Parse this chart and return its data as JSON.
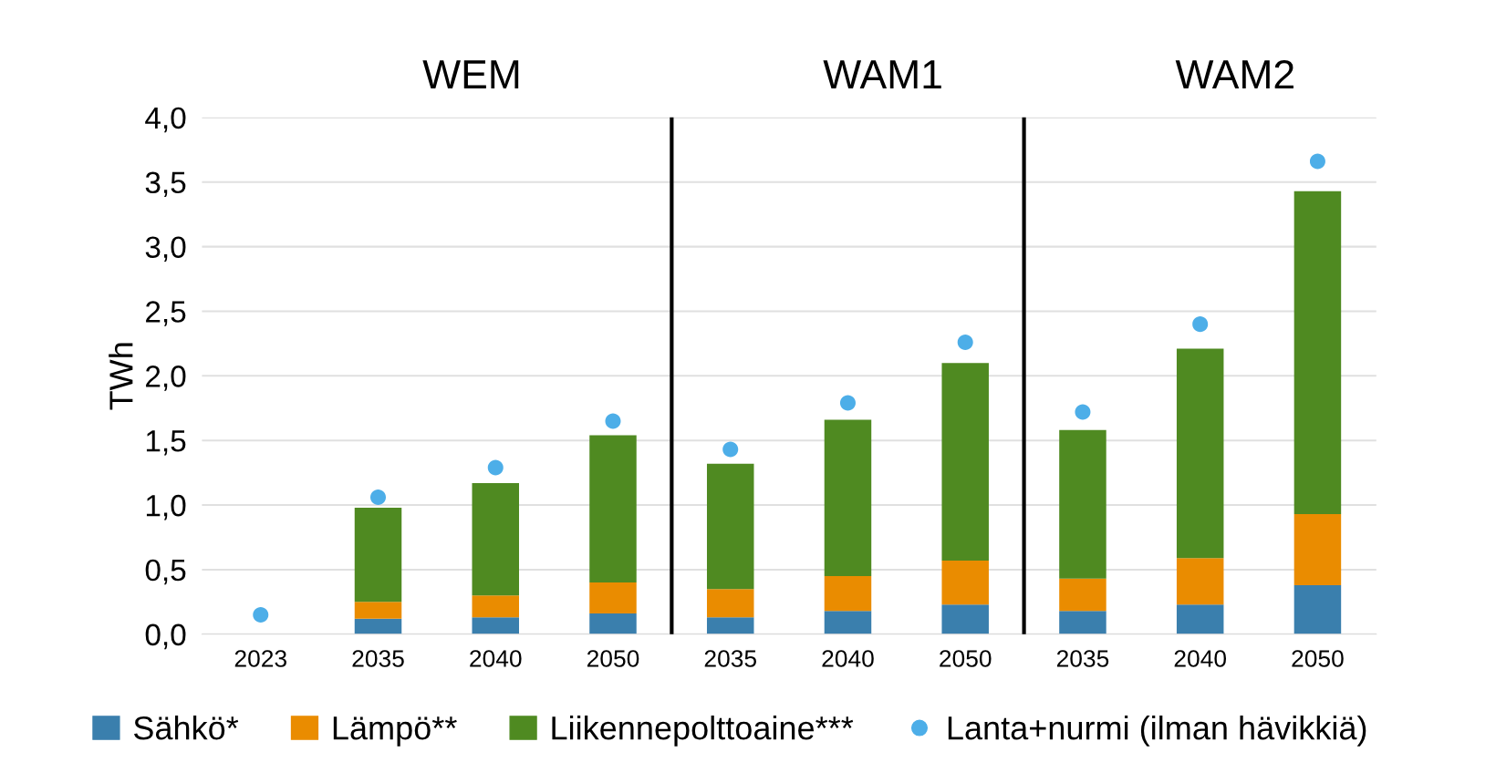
{
  "chart_data": {
    "type": "bar",
    "stacked": true,
    "ylabel": "TWh",
    "categories": [
      "2023",
      "2035",
      "2040",
      "2050",
      "2035",
      "2040",
      "2050",
      "2035",
      "2040",
      "2050"
    ],
    "series": [
      {
        "name": "Sähkö*",
        "color": "#3a7fad",
        "values": [
          null,
          0.12,
          0.13,
          0.16,
          0.13,
          0.18,
          0.23,
          0.18,
          0.23,
          0.38
        ]
      },
      {
        "name": "Lämpö**",
        "color": "#ea8c00",
        "values": [
          null,
          0.13,
          0.17,
          0.24,
          0.22,
          0.27,
          0.34,
          0.25,
          0.36,
          0.55
        ]
      },
      {
        "name": "Liikennepolttoaine***",
        "color": "#4f8a21",
        "values": [
          null,
          0.73,
          0.87,
          1.14,
          0.97,
          1.21,
          1.53,
          1.15,
          1.62,
          2.5
        ]
      },
      {
        "name": "Lanta+nurmi (ilman hävikkiä)",
        "type": "scatter",
        "color": "#4daee8",
        "marker": "circle",
        "values": [
          0.15,
          1.06,
          1.29,
          1.65,
          1.43,
          1.79,
          2.26,
          1.72,
          2.4,
          3.66
        ]
      }
    ],
    "ylim": [
      0,
      4
    ],
    "yticks": [
      {
        "value": 0,
        "label": "0,0"
      },
      {
        "value": 0.5,
        "label": "0,5"
      },
      {
        "value": 1,
        "label": "1,0"
      },
      {
        "value": 1.5,
        "label": "1,5"
      },
      {
        "value": 2,
        "label": "2,0"
      },
      {
        "value": 2.5,
        "label": "2,5"
      },
      {
        "value": 3,
        "label": "3,0"
      },
      {
        "value": 3.5,
        "label": "3,5"
      },
      {
        "value": 4,
        "label": "4,0"
      }
    ],
    "annotations": [
      "WEM",
      "WAM1",
      "WAM2"
    ],
    "grid": "y",
    "legend": "bottom"
  }
}
